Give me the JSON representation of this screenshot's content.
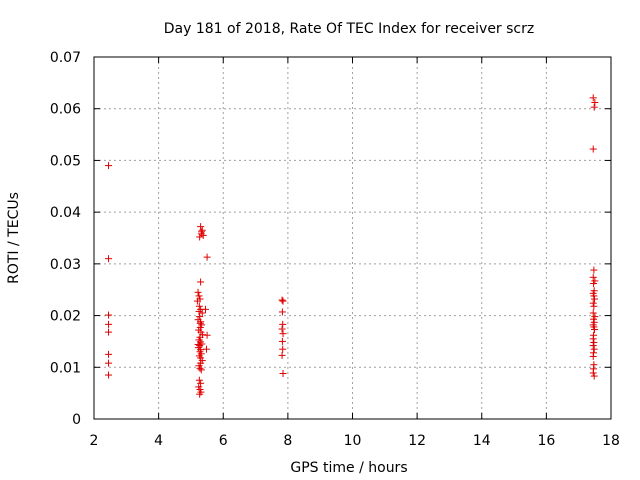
{
  "chart_data": {
    "type": "scatter",
    "title": "Day 181 of 2018, Rate Of TEC Index for receiver scrz",
    "xlabel": "GPS time / hours",
    "ylabel": "ROTI / TECUs",
    "xlim": [
      2,
      18
    ],
    "ylim": [
      0,
      0.07
    ],
    "x_ticks": [
      2,
      4,
      6,
      8,
      10,
      12,
      14,
      16,
      18
    ],
    "x_tick_labels": [
      "2",
      "4",
      "6",
      "8",
      "10",
      "12",
      "14",
      "16",
      "18"
    ],
    "y_ticks": [
      0,
      0.01,
      0.02,
      0.03,
      0.04,
      0.05,
      0.06,
      0.07
    ],
    "y_tick_labels": [
      "0",
      "0.01",
      "0.02",
      "0.03",
      "0.04",
      "0.05",
      "0.06",
      "0.07"
    ],
    "grid": true,
    "marker": "+",
    "color": "#e00000",
    "series": [
      {
        "name": "ROTI",
        "x": [
          2.45,
          2.45,
          2.45,
          2.45,
          2.45,
          2.45,
          2.45,
          2.45,
          5.3,
          5.35,
          5.32,
          5.27,
          5.33,
          5.38,
          5.5,
          5.45,
          5.3,
          5.22,
          5.25,
          5.28,
          5.2,
          5.26,
          5.3,
          5.35,
          5.27,
          5.22,
          5.3,
          5.33,
          5.29,
          5.24,
          5.31,
          5.36,
          5.28,
          5.25,
          5.3,
          5.34,
          5.27,
          5.23,
          5.3,
          5.28,
          5.32,
          5.26,
          5.3,
          5.35,
          5.5,
          5.48,
          5.3,
          5.25,
          5.28,
          5.32,
          5.26,
          5.3,
          5.24,
          5.28,
          5.31,
          5.27,
          5.22,
          5.25,
          5.29,
          7.82,
          7.85,
          7.83,
          7.84,
          7.82,
          7.85,
          7.83,
          7.84,
          7.82,
          7.85,
          17.45,
          17.5,
          17.48,
          17.45,
          17.47,
          17.45,
          17.5,
          17.46,
          17.48,
          17.45,
          17.47,
          17.49,
          17.45,
          17.47,
          17.45,
          17.5,
          17.46,
          17.48,
          17.45,
          17.47,
          17.49,
          17.46,
          17.45,
          17.47,
          17.45,
          17.48,
          17.46,
          17.45,
          17.47,
          17.46,
          17.45,
          17.48
        ],
        "y": [
          0.049,
          0.031,
          0.0201,
          0.0183,
          0.0168,
          0.0125,
          0.0108,
          0.0085,
          0.0372,
          0.0365,
          0.0358,
          0.0352,
          0.0362,
          0.0355,
          0.0313,
          0.0212,
          0.0265,
          0.0245,
          0.0238,
          0.0232,
          0.0228,
          0.0218,
          0.0212,
          0.0205,
          0.0198,
          0.0192,
          0.0188,
          0.0182,
          0.0177,
          0.0172,
          0.0168,
          0.0163,
          0.0158,
          0.0153,
          0.0149,
          0.0145,
          0.0142,
          0.0138,
          0.0134,
          0.013,
          0.0126,
          0.0122,
          0.0118,
          0.0113,
          0.0162,
          0.0135,
          0.0108,
          0.0103,
          0.0098,
          0.0095,
          0.0075,
          0.0069,
          0.0062,
          0.0057,
          0.0052,
          0.0048,
          0.0144,
          0.0208,
          0.0185,
          0.023,
          0.0228,
          0.0207,
          0.0183,
          0.0174,
          0.0165,
          0.015,
          0.0135,
          0.0123,
          0.0088,
          0.0621,
          0.0612,
          0.0603,
          0.0522,
          0.0288,
          0.0274,
          0.0267,
          0.0262,
          0.0248,
          0.0243,
          0.0238,
          0.0232,
          0.0224,
          0.0218,
          0.0205,
          0.0198,
          0.0193,
          0.0187,
          0.0182,
          0.0178,
          0.0173,
          0.0162,
          0.0155,
          0.0148,
          0.0142,
          0.0135,
          0.0128,
          0.0121,
          0.0105,
          0.0097,
          0.0089,
          0.0083
        ]
      }
    ]
  }
}
